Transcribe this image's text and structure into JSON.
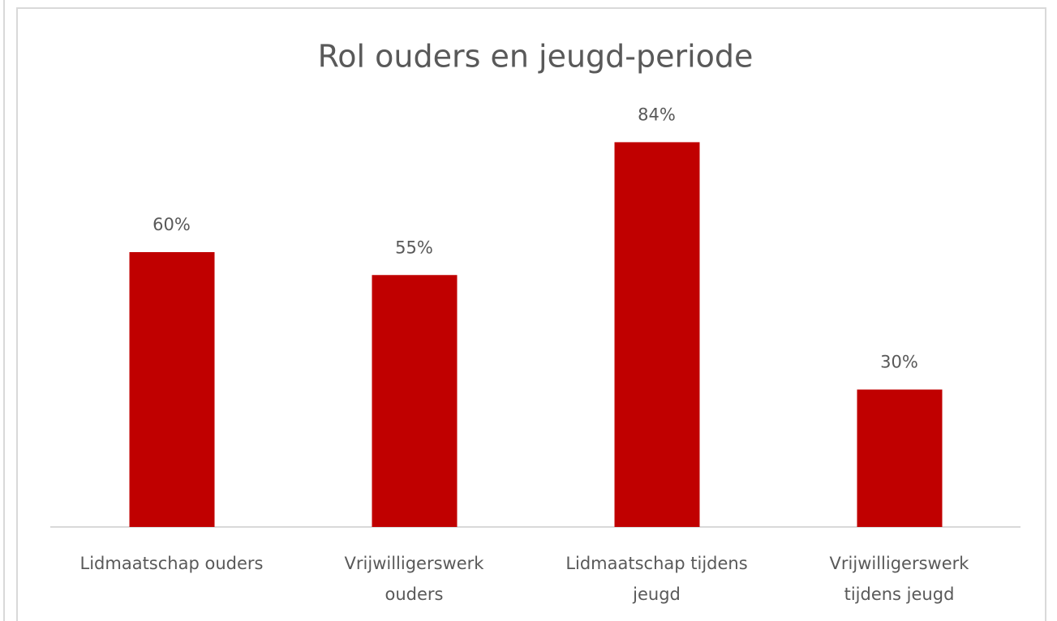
{
  "chart_data": {
    "type": "bar",
    "title": "Rol ouders en jeugd-periode",
    "categories": [
      "Lidmaatschap ouders",
      "Vrijwilligerswerk\nouders",
      "Lidmaatschap tijdens\njeugd",
      "Vrijwilligerswerk\ntijdens jeugd"
    ],
    "values": [
      60,
      55,
      84,
      30
    ],
    "value_labels": [
      "60%",
      "55%",
      "84%",
      "30%"
    ],
    "color": "#c00000"
  }
}
